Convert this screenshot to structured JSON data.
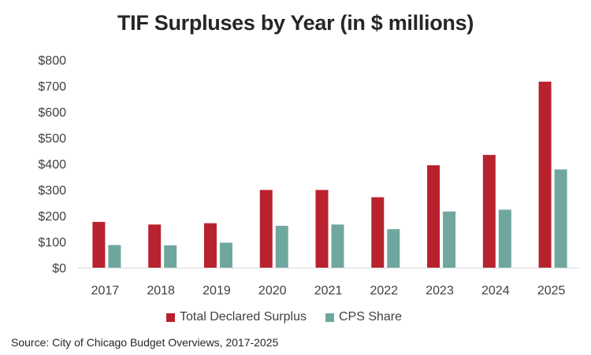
{
  "chart_data": {
    "type": "bar",
    "title": "TIF Surpluses by Year (in $ millions)",
    "categories": [
      "2017",
      "2018",
      "2019",
      "2020",
      "2021",
      "2022",
      "2023",
      "2024",
      "2025"
    ],
    "series": [
      {
        "name": "Total Declared Surplus",
        "color": "#B8222E",
        "values": [
          176,
          166,
          171,
          299,
          299,
          271,
          394,
          434,
          716
        ]
      },
      {
        "name": "CPS Share",
        "color": "#6FA79E",
        "values": [
          87,
          86,
          96,
          161,
          166,
          148,
          216,
          223,
          378
        ]
      }
    ],
    "ylim": [
      0,
      800
    ],
    "yticks": [
      0,
      100,
      200,
      300,
      400,
      500,
      600,
      700,
      800
    ],
    "ytick_labels": [
      "$0",
      "$100",
      "$200",
      "$300",
      "$400",
      "$500",
      "$600",
      "$700",
      "$800"
    ],
    "grid": false,
    "legend_position": "bottom",
    "source": "Source: City of Chicago Budget Overviews, 2017-2025"
  }
}
